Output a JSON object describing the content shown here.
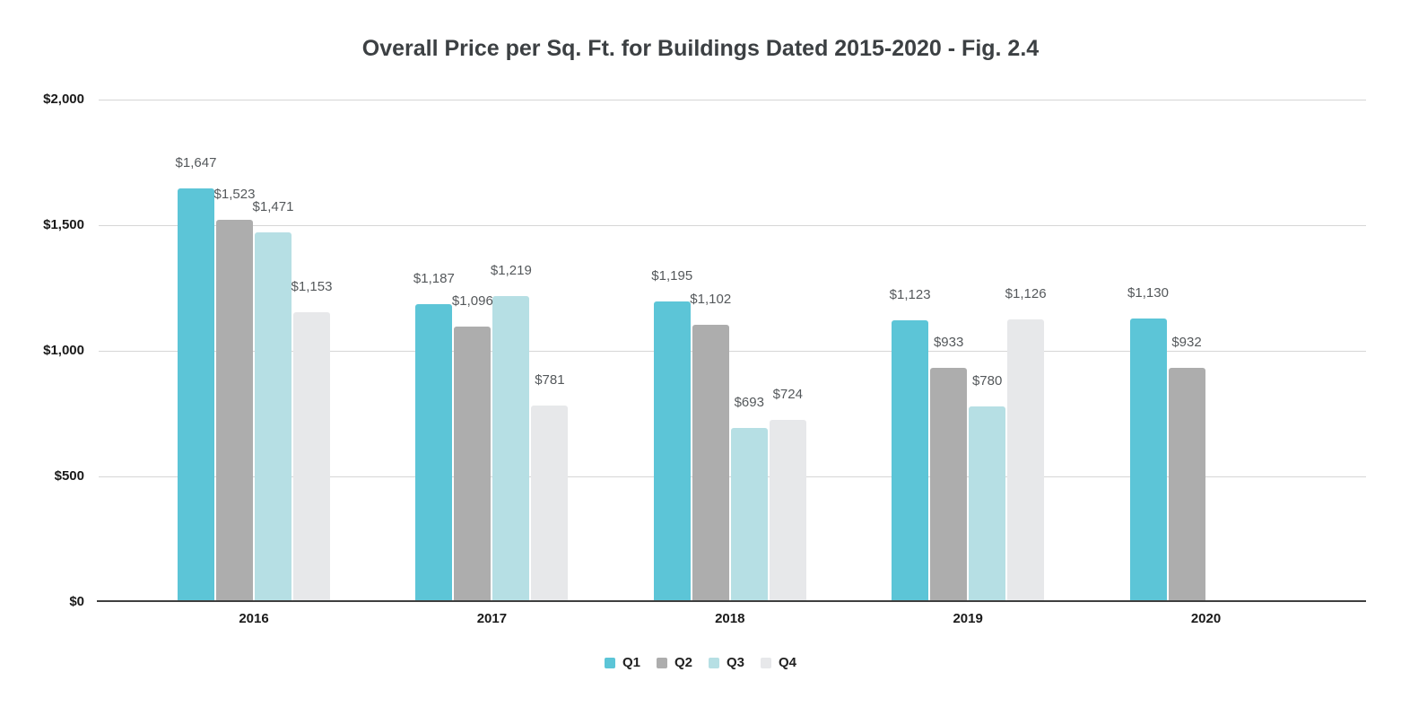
{
  "chart_data": {
    "type": "bar",
    "title": "Overall Price per Sq. Ft. for Buildings Dated 2015-2020 - Fig. 2.4",
    "categories": [
      "2016",
      "2017",
      "2018",
      "2019",
      "2020"
    ],
    "series": [
      {
        "name": "Q1",
        "color": "#5CC5D7",
        "values": [
          1647,
          1187,
          1195,
          1123,
          1130
        ],
        "labels": [
          "$1,647",
          "$1,187",
          "$1,195",
          "$1,123",
          "$1,130"
        ]
      },
      {
        "name": "Q2",
        "color": "#ADADAD",
        "values": [
          1523,
          1096,
          1102,
          933,
          932
        ],
        "labels": [
          "$1,523",
          "$1,096",
          "$1,102",
          "$933",
          "$932"
        ]
      },
      {
        "name": "Q3",
        "color": "#B6DFE4",
        "values": [
          1471,
          1219,
          693,
          780,
          null
        ],
        "labels": [
          "$1,471",
          "$1,219",
          "$693",
          "$780",
          null
        ]
      },
      {
        "name": "Q4",
        "color": "#E7E8EA",
        "values": [
          1153,
          781,
          724,
          1126,
          null
        ],
        "labels": [
          "$1,153",
          "$781",
          "$724",
          "$1,126",
          null
        ]
      }
    ],
    "ylim": [
      0,
      2000
    ],
    "yticks": [
      {
        "value": 0,
        "label": "$0"
      },
      {
        "value": 500,
        "label": "$500"
      },
      {
        "value": 1000,
        "label": "$1,000"
      },
      {
        "value": 1500,
        "label": "$1,500"
      },
      {
        "value": 2000,
        "label": "$2,000"
      }
    ],
    "grid": true,
    "legend_position": "bottom"
  }
}
